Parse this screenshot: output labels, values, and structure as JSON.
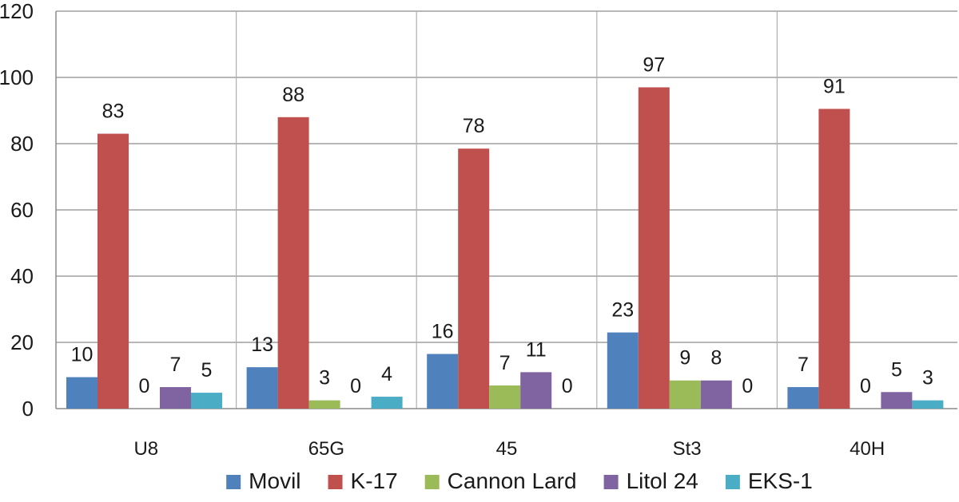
{
  "chart_data": {
    "type": "bar",
    "title": "",
    "xlabel": "",
    "ylabel": "",
    "ylim": [
      0,
      120
    ],
    "yticks": [
      0,
      20,
      40,
      60,
      80,
      100,
      120
    ],
    "grid": true,
    "legend_position": "bottom",
    "categories": [
      "U8",
      "65G",
      "45",
      "St3",
      "40H"
    ],
    "series": [
      {
        "name": "Movil",
        "color": "#4f81bd",
        "values": [
          10,
          13,
          16,
          23,
          7
        ]
      },
      {
        "name": "K-17",
        "color": "#c0504d",
        "values": [
          83,
          88,
          78,
          97,
          91
        ]
      },
      {
        "name": "Cannon Lard",
        "color": "#9bbb59",
        "values": [
          0,
          3,
          7,
          9,
          0
        ]
      },
      {
        "name": "Litol 24",
        "color": "#8064a2",
        "values": [
          7,
          0,
          11,
          8,
          5
        ]
      },
      {
        "name": "EKS-1",
        "color": "#4bacc6",
        "values": [
          5,
          4,
          0,
          0,
          3
        ]
      }
    ],
    "plotted_values": [
      [
        9.5,
        12.5,
        16.5,
        23,
        6.5
      ],
      [
        83,
        88,
        78.5,
        97,
        90.5
      ],
      [
        0,
        2.5,
        7,
        8.5,
        0
      ],
      [
        6.5,
        0,
        11,
        8.5,
        5
      ],
      [
        4.8,
        3.6,
        0,
        0,
        2.5
      ]
    ]
  }
}
